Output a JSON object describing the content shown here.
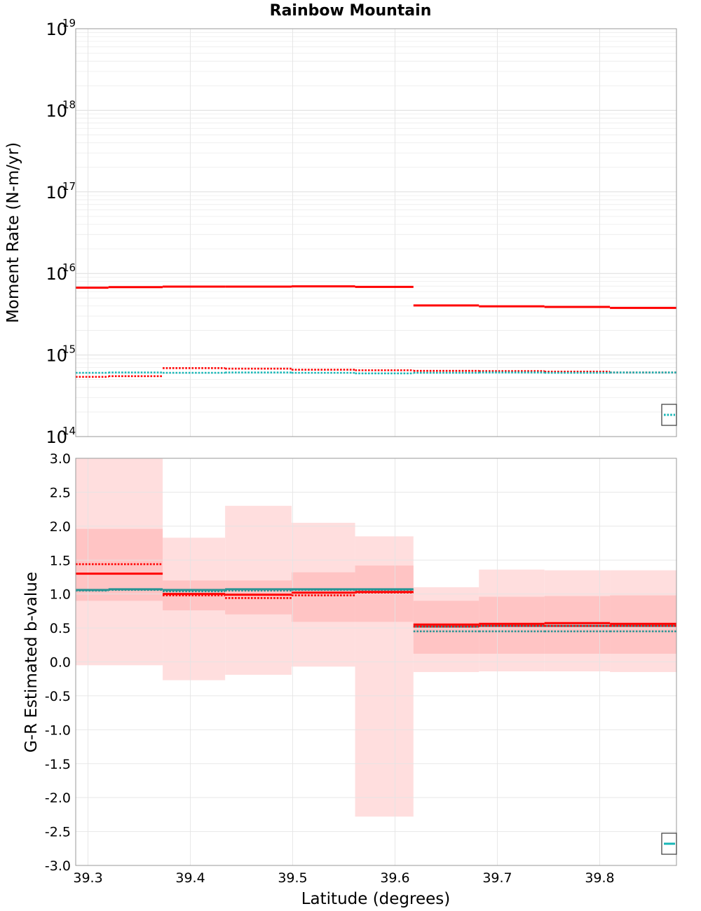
{
  "chart_data": {
    "title": "Rainbow Mountain",
    "xlabel": "Latitude (degrees)",
    "xlim": [
      39.288,
      39.875
    ],
    "x_ticks": [
      "39.3",
      "39.4",
      "39.5",
      "39.6",
      "39.7",
      "39.8"
    ],
    "bins": [
      [
        39.288,
        39.373
      ],
      [
        39.373,
        39.434
      ],
      [
        39.434,
        39.499
      ],
      [
        39.499,
        39.561
      ],
      [
        39.561,
        39.618
      ],
      [
        39.618,
        39.682
      ],
      [
        39.682,
        39.746
      ],
      [
        39.746,
        39.81
      ],
      [
        39.81,
        39.875
      ]
    ],
    "panels": [
      {
        "type": "line",
        "scale": "log",
        "ylabel": "Moment Rate (N-m/yr)",
        "ylim": [
          100000000000000.0,
          1e+19
        ],
        "y_ticks": [
          {
            "base": "10",
            "exp": "14"
          },
          {
            "base": "10",
            "exp": "15"
          },
          {
            "base": "10",
            "exp": "16"
          },
          {
            "base": "10",
            "exp": "17"
          },
          {
            "base": "10",
            "exp": "18"
          },
          {
            "base": "10",
            "exp": "19"
          }
        ],
        "grid": true,
        "series": [
          {
            "style": "solid",
            "color": "#ff0000",
            "segments": [
              {
                "x0": 39.288,
                "x1": 39.32,
                "y": 6700000000000000.0
              },
              {
                "x0": 39.32,
                "x1": 39.373,
                "y": 6800000000000000.0
              },
              {
                "x0": 39.373,
                "x1": 39.434,
                "y": 6900000000000000.0
              },
              {
                "x0": 39.434,
                "x1": 39.499,
                "y": 6900000000000000.0
              },
              {
                "x0": 39.499,
                "x1": 39.561,
                "y": 6950000000000000.0
              },
              {
                "x0": 39.561,
                "x1": 39.618,
                "y": 6850000000000000.0
              },
              {
                "x0": 39.618,
                "x1": 39.682,
                "y": 4050000000000000.0
              },
              {
                "x0": 39.682,
                "x1": 39.746,
                "y": 3950000000000000.0
              },
              {
                "x0": 39.746,
                "x1": 39.81,
                "y": 3880000000000000.0
              },
              {
                "x0": 39.81,
                "x1": 39.875,
                "y": 3780000000000000.0
              }
            ]
          },
          {
            "style": "dotted",
            "color": "#ff0000",
            "segments": [
              {
                "x0": 39.288,
                "x1": 39.32,
                "y": 540000000000000.0
              },
              {
                "x0": 39.32,
                "x1": 39.373,
                "y": 550000000000000.0
              },
              {
                "x0": 39.373,
                "x1": 39.434,
                "y": 690000000000000.0
              },
              {
                "x0": 39.434,
                "x1": 39.499,
                "y": 680000000000000.0
              },
              {
                "x0": 39.499,
                "x1": 39.561,
                "y": 660000000000000.0
              },
              {
                "x0": 39.561,
                "x1": 39.618,
                "y": 650000000000000.0
              },
              {
                "x0": 39.618,
                "x1": 39.682,
                "y": 640000000000000.0
              },
              {
                "x0": 39.682,
                "x1": 39.746,
                "y": 635000000000000.0
              },
              {
                "x0": 39.746,
                "x1": 39.81,
                "y": 625000000000000.0
              },
              {
                "x0": 39.81,
                "x1": 39.875,
                "y": 610000000000000.0
              }
            ]
          },
          {
            "style": "dotted",
            "color": "#17b6b6",
            "segments": [
              {
                "x0": 39.288,
                "x1": 39.32,
                "y": 605000000000000.0
              },
              {
                "x0": 39.32,
                "x1": 39.373,
                "y": 610000000000000.0
              },
              {
                "x0": 39.373,
                "x1": 39.434,
                "y": 605000000000000.0
              },
              {
                "x0": 39.434,
                "x1": 39.499,
                "y": 610000000000000.0
              },
              {
                "x0": 39.499,
                "x1": 39.561,
                "y": 605000000000000.0
              },
              {
                "x0": 39.561,
                "x1": 39.618,
                "y": 595000000000000.0
              },
              {
                "x0": 39.618,
                "x1": 39.682,
                "y": 605000000000000.0
              },
              {
                "x0": 39.682,
                "x1": 39.746,
                "y": 610000000000000.0
              },
              {
                "x0": 39.746,
                "x1": 39.81,
                "y": 605000000000000.0
              },
              {
                "x0": 39.81,
                "x1": 39.875,
                "y": 610000000000000.0
              }
            ]
          }
        ],
        "legend": {
          "position": "bottom-right",
          "entries": [
            {
              "style": "dotted",
              "color": "#17b6b6"
            }
          ]
        }
      },
      {
        "type": "line",
        "scale": "linear",
        "ylabel": "G-R Estimated b-value",
        "ylim": [
          -3.0,
          3.0
        ],
        "y_ticks": [
          "-3.0",
          "-2.5",
          "-2.0",
          "-1.5",
          "-1.0",
          "-0.5",
          "0.0",
          "0.5",
          "1.0",
          "1.5",
          "2.0",
          "2.5",
          "3.0"
        ],
        "grid": true,
        "bands": [
          {
            "level": "outer",
            "color": "#ffdede",
            "ranges": [
              {
                "x0": 39.288,
                "x1": 39.373,
                "y0": -0.05,
                "y1": 3.0
              },
              {
                "x0": 39.373,
                "x1": 39.434,
                "y0": -0.27,
                "y1": 1.83
              },
              {
                "x0": 39.434,
                "x1": 39.499,
                "y0": -0.19,
                "y1": 2.3
              },
              {
                "x0": 39.499,
                "x1": 39.561,
                "y0": -0.07,
                "y1": 2.05
              },
              {
                "x0": 39.561,
                "x1": 39.618,
                "y0": -2.28,
                "y1": 1.85
              },
              {
                "x0": 39.618,
                "x1": 39.682,
                "y0": -0.15,
                "y1": 1.1
              },
              {
                "x0": 39.682,
                "x1": 39.746,
                "y0": -0.14,
                "y1": 1.36
              },
              {
                "x0": 39.746,
                "x1": 39.81,
                "y0": -0.14,
                "y1": 1.35
              },
              {
                "x0": 39.81,
                "x1": 39.875,
                "y0": -0.15,
                "y1": 1.35
              }
            ]
          },
          {
            "level": "inner",
            "color": "#ffc4c4",
            "ranges": [
              {
                "x0": 39.288,
                "x1": 39.373,
                "y0": 0.9,
                "y1": 1.96
              },
              {
                "x0": 39.373,
                "x1": 39.434,
                "y0": 0.76,
                "y1": 1.2
              },
              {
                "x0": 39.434,
                "x1": 39.499,
                "y0": 0.7,
                "y1": 1.2
              },
              {
                "x0": 39.499,
                "x1": 39.561,
                "y0": 0.59,
                "y1": 1.32
              },
              {
                "x0": 39.561,
                "x1": 39.618,
                "y0": 0.59,
                "y1": 1.42
              },
              {
                "x0": 39.618,
                "x1": 39.682,
                "y0": 0.12,
                "y1": 0.9
              },
              {
                "x0": 39.682,
                "x1": 39.746,
                "y0": 0.12,
                "y1": 0.96
              },
              {
                "x0": 39.746,
                "x1": 39.81,
                "y0": 0.12,
                "y1": 0.97
              },
              {
                "x0": 39.81,
                "x1": 39.875,
                "y0": 0.12,
                "y1": 0.98
              }
            ]
          }
        ],
        "series": [
          {
            "style": "solid",
            "color": "#2a9393",
            "segments": [
              {
                "x0": 39.288,
                "x1": 39.32,
                "y": 1.06
              },
              {
                "x0": 39.32,
                "x1": 39.373,
                "y": 1.07
              },
              {
                "x0": 39.373,
                "x1": 39.434,
                "y": 1.06
              },
              {
                "x0": 39.434,
                "x1": 39.499,
                "y": 1.07
              },
              {
                "x0": 39.499,
                "x1": 39.561,
                "y": 1.07
              },
              {
                "x0": 39.561,
                "x1": 39.618,
                "y": 1.07
              },
              {
                "x0": 39.618,
                "x1": 39.682,
                "y": 0.52
              },
              {
                "x0": 39.682,
                "x1": 39.746,
                "y": 0.53
              },
              {
                "x0": 39.746,
                "x1": 39.81,
                "y": 0.53
              },
              {
                "x0": 39.81,
                "x1": 39.875,
                "y": 0.53
              }
            ]
          },
          {
            "style": "dotted",
            "color": "#2a9393",
            "segments": [
              {
                "x0": 39.288,
                "x1": 39.32,
                "y": 1.05
              },
              {
                "x0": 39.32,
                "x1": 39.373,
                "y": 1.06
              },
              {
                "x0": 39.373,
                "x1": 39.434,
                "y": 1.04
              },
              {
                "x0": 39.434,
                "x1": 39.499,
                "y": 1.05
              },
              {
                "x0": 39.499,
                "x1": 39.561,
                "y": 1.06
              },
              {
                "x0": 39.561,
                "x1": 39.618,
                "y": 1.06
              },
              {
                "x0": 39.618,
                "x1": 39.682,
                "y": 0.45
              },
              {
                "x0": 39.682,
                "x1": 39.746,
                "y": 0.45
              },
              {
                "x0": 39.746,
                "x1": 39.81,
                "y": 0.45
              },
              {
                "x0": 39.81,
                "x1": 39.875,
                "y": 0.45
              }
            ]
          },
          {
            "style": "solid",
            "color": "#ff0000",
            "segments": [
              {
                "x0": 39.288,
                "x1": 39.373,
                "y": 1.3
              },
              {
                "x0": 39.373,
                "x1": 39.434,
                "y": 1.0
              },
              {
                "x0": 39.434,
                "x1": 39.499,
                "y": 0.99
              },
              {
                "x0": 39.499,
                "x1": 39.561,
                "y": 1.02
              },
              {
                "x0": 39.561,
                "x1": 39.618,
                "y": 1.03
              },
              {
                "x0": 39.618,
                "x1": 39.682,
                "y": 0.55
              },
              {
                "x0": 39.682,
                "x1": 39.746,
                "y": 0.56
              },
              {
                "x0": 39.746,
                "x1": 39.81,
                "y": 0.57
              },
              {
                "x0": 39.81,
                "x1": 39.875,
                "y": 0.56
              }
            ]
          },
          {
            "style": "dotted",
            "color": "#ff0000",
            "segments": [
              {
                "x0": 39.288,
                "x1": 39.373,
                "y": 1.44
              },
              {
                "x0": 39.373,
                "x1": 39.434,
                "y": 0.98
              },
              {
                "x0": 39.434,
                "x1": 39.499,
                "y": 0.94
              },
              {
                "x0": 39.499,
                "x1": 39.561,
                "y": 0.98
              },
              {
                "x0": 39.561,
                "x1": 39.618,
                "y": 1.02
              },
              {
                "x0": 39.618,
                "x1": 39.682,
                "y": 0.52
              },
              {
                "x0": 39.682,
                "x1": 39.746,
                "y": 0.53
              },
              {
                "x0": 39.746,
                "x1": 39.81,
                "y": 0.53
              },
              {
                "x0": 39.81,
                "x1": 39.875,
                "y": 0.53
              }
            ]
          }
        ],
        "legend": {
          "position": "bottom-right",
          "entries": [
            {
              "style": "solid",
              "color": "#17b6b6"
            }
          ]
        }
      }
    ]
  }
}
